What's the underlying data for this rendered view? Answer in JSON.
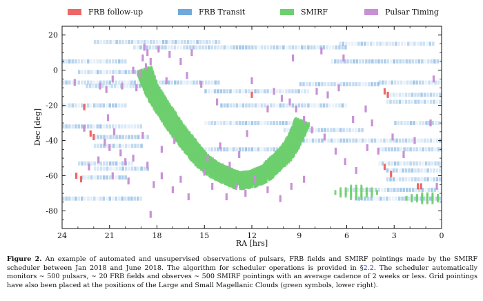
{
  "legend": [
    {
      "label": "FRB follow-up",
      "color": "#ee6666"
    },
    {
      "label": "FRB Transit",
      "color": "#6fa8dc"
    },
    {
      "label": "SMIRF",
      "color": "#6dcf6d"
    },
    {
      "label": "Pulsar Timing",
      "color": "#c891d6"
    }
  ],
  "caption": {
    "figure_label": "Figure 2.",
    "text_before_ref": "An example of automated and unsupervised observations of pulsars, FRB fields and SMIRF pointings made by the SMIRF scheduler between Jan 2018 and June 2018. The algorithm for scheduler operations is provided in §",
    "ref": "2.2",
    "text_after_ref": ". The scheduler automatically monitors ∼ 500 pulsars, ∼ 20 FRB fields and observes ∼ 500 SMIRF pointings with an average cadence of 2 weeks or less. Grid pointings have also been placed at the positions of the Large and Small Magellanic Clouds (green symbols, lower right)."
  },
  "chart_data": {
    "type": "scatter",
    "title": "",
    "xlabel": "RA [hrs]",
    "ylabel": "Dec [deg]",
    "xlim": [
      24,
      0
    ],
    "ylim": [
      -90,
      25
    ],
    "x_reversed": true,
    "xticks": [
      24,
      21,
      18,
      15,
      12,
      9,
      6,
      3,
      0
    ],
    "yticks": [
      20,
      0,
      -20,
      -40,
      -60,
      -80
    ],
    "grid": false,
    "legend_position": "top",
    "series": [
      {
        "name": "FRB Transit",
        "marker": "horizontal track (RA span at fixed Dec)",
        "tracks": [
          {
            "ra_start": 22.0,
            "ra_end": 14.0,
            "dec": 16
          },
          {
            "ra_start": 19.5,
            "ra_end": 6.0,
            "dec": 13
          },
          {
            "ra_start": 6.5,
            "ra_end": 0.5,
            "dec": 15
          },
          {
            "ra_start": 24.0,
            "ra_end": 20.0,
            "dec": 5
          },
          {
            "ra_start": 7.0,
            "ra_end": 0.0,
            "dec": 5
          },
          {
            "ra_start": 23.0,
            "ra_end": 19.0,
            "dec": -1
          },
          {
            "ra_start": 24.0,
            "ra_end": 14.0,
            "dec": -7
          },
          {
            "ra_start": 9.0,
            "ra_end": 4.0,
            "dec": -8
          },
          {
            "ra_start": 4.0,
            "ra_end": 0.0,
            "dec": -7
          },
          {
            "ra_start": 22.5,
            "ra_end": 19.0,
            "dec": -9
          },
          {
            "ra_start": 15.0,
            "ra_end": 8.5,
            "dec": -12
          },
          {
            "ra_start": 3.5,
            "ra_end": 0.0,
            "dec": -14
          },
          {
            "ra_start": 3.5,
            "ra_end": 0.0,
            "dec": -18
          },
          {
            "ra_start": 24.0,
            "ra_end": 20.0,
            "dec": -20
          },
          {
            "ra_start": 14.0,
            "ra_end": 6.0,
            "dec": -20
          },
          {
            "ra_start": 15.0,
            "ra_end": 9.0,
            "dec": -30
          },
          {
            "ra_start": 3.0,
            "ra_end": 0.0,
            "dec": -30
          },
          {
            "ra_start": 24.0,
            "ra_end": 19.0,
            "dec": -32
          },
          {
            "ra_start": 10.0,
            "ra_end": 5.0,
            "dec": -34
          },
          {
            "ra_start": 22.0,
            "ra_end": 18.5,
            "dec": -38
          },
          {
            "ra_start": 9.0,
            "ra_end": 0.0,
            "dec": -40
          },
          {
            "ra_start": 22.0,
            "ra_end": 19.0,
            "dec": -43
          },
          {
            "ra_start": 15.0,
            "ra_end": 10.0,
            "dec": -45
          },
          {
            "ra_start": 4.0,
            "ra_end": 0.0,
            "dec": -45
          },
          {
            "ra_start": 23.0,
            "ra_end": 19.5,
            "dec": -53
          },
          {
            "ra_start": 4.0,
            "ra_end": 0.0,
            "dec": -53
          },
          {
            "ra_start": 22.0,
            "ra_end": 18.5,
            "dec": -56
          },
          {
            "ra_start": 3.5,
            "ra_end": 0.0,
            "dec": -57
          },
          {
            "ra_start": 3.5,
            "ra_end": 0.0,
            "dec": -62
          },
          {
            "ra_start": 23.0,
            "ra_end": 20.0,
            "dec": -61
          },
          {
            "ra_start": 6.0,
            "ra_end": 0.0,
            "dec": -68
          },
          {
            "ra_start": 24.0,
            "ra_end": 19.0,
            "dec": -73
          },
          {
            "ra_start": 5.5,
            "ra_end": 0.0,
            "dec": -73
          }
        ]
      },
      {
        "name": "FRB follow-up",
        "points": [
          {
            "ra": 22.6,
            "dec": -21
          },
          {
            "ra": 22.2,
            "dec": -36
          },
          {
            "ra": 22.0,
            "dec": -38
          },
          {
            "ra": 23.1,
            "dec": -60
          },
          {
            "ra": 22.8,
            "dec": -62
          },
          {
            "ra": 3.6,
            "dec": -12
          },
          {
            "ra": 3.4,
            "dec": -14
          },
          {
            "ra": 3.6,
            "dec": -55
          },
          {
            "ra": 3.2,
            "dec": -59
          },
          {
            "ra": 1.3,
            "dec": -66
          },
          {
            "ra": 1.5,
            "dec": -66
          },
          {
            "ra": 12.0,
            "dec": -14
          }
        ]
      },
      {
        "name": "Pulsar Timing",
        "points": [
          {
            "ra": 18.8,
            "dec": 13
          },
          {
            "ra": 18.6,
            "dec": 10
          },
          {
            "ra": 18.9,
            "dec": 7
          },
          {
            "ra": 18.4,
            "dec": 5
          },
          {
            "ra": 18.7,
            "dec": 2
          },
          {
            "ra": 19.1,
            "dec": -2
          },
          {
            "ra": 17.9,
            "dec": 12
          },
          {
            "ra": 17.2,
            "dec": 9
          },
          {
            "ra": 16.5,
            "dec": 5
          },
          {
            "ra": 15.8,
            "dec": 10
          },
          {
            "ra": 19.5,
            "dec": 0
          },
          {
            "ra": 20.8,
            "dec": -5
          },
          {
            "ra": 21.6,
            "dec": -9
          },
          {
            "ra": 20.2,
            "dec": -9
          },
          {
            "ra": 19.3,
            "dec": -10
          },
          {
            "ra": 23.2,
            "dec": -7
          },
          {
            "ra": 21.1,
            "dec": -27
          },
          {
            "ra": 20.7,
            "dec": -35
          },
          {
            "ra": 21.3,
            "dec": -41
          },
          {
            "ra": 21.0,
            "dec": -44
          },
          {
            "ra": 20.3,
            "dec": -47
          },
          {
            "ra": 19.5,
            "dec": -50
          },
          {
            "ra": 20.0,
            "dec": -52
          },
          {
            "ra": 21.7,
            "dec": -51
          },
          {
            "ra": 22.3,
            "dec": -55
          },
          {
            "ra": 20.8,
            "dec": -60
          },
          {
            "ra": 19.8,
            "dec": -63
          },
          {
            "ra": 18.6,
            "dec": -54
          },
          {
            "ra": 18.2,
            "dec": -65
          },
          {
            "ra": 17.7,
            "dec": -60
          },
          {
            "ra": 17.0,
            "dec": -68
          },
          {
            "ra": 16.5,
            "dec": -62
          },
          {
            "ra": 16.0,
            "dec": -72
          },
          {
            "ra": 15.0,
            "dec": -58
          },
          {
            "ra": 14.5,
            "dec": -66
          },
          {
            "ra": 13.6,
            "dec": -72
          },
          {
            "ra": 13.0,
            "dec": -66
          },
          {
            "ra": 12.4,
            "dec": -70
          },
          {
            "ra": 11.8,
            "dec": -62
          },
          {
            "ra": 11.0,
            "dec": -68
          },
          {
            "ra": 10.2,
            "dec": -73
          },
          {
            "ra": 9.5,
            "dec": -66
          },
          {
            "ra": 8.7,
            "dec": -62
          },
          {
            "ra": 18.4,
            "dec": -82
          },
          {
            "ra": 14.8,
            "dec": -50
          },
          {
            "ra": 13.4,
            "dec": -54
          },
          {
            "ra": 12.8,
            "dec": -48
          },
          {
            "ra": 15.2,
            "dec": -8
          },
          {
            "ra": 14.2,
            "dec": -18
          },
          {
            "ra": 12.0,
            "dec": -6
          },
          {
            "ra": 10.6,
            "dec": -12
          },
          {
            "ra": 9.6,
            "dec": -18
          },
          {
            "ra": 9.2,
            "dec": -22
          },
          {
            "ra": 8.7,
            "dec": -28
          },
          {
            "ra": 8.2,
            "dec": -34
          },
          {
            "ra": 7.4,
            "dec": -38
          },
          {
            "ra": 6.7,
            "dec": -46
          },
          {
            "ra": 6.1,
            "dec": -52
          },
          {
            "ra": 5.4,
            "dec": -57
          },
          {
            "ra": 4.7,
            "dec": -44
          },
          {
            "ra": 4.0,
            "dec": -46
          },
          {
            "ra": 3.1,
            "dec": -38
          },
          {
            "ra": 2.4,
            "dec": -48
          },
          {
            "ra": 1.7,
            "dec": -40
          },
          {
            "ra": 0.7,
            "dec": -30
          },
          {
            "ra": 0.5,
            "dec": -5
          },
          {
            "ra": 0.3,
            "dec": -66
          },
          {
            "ra": 4.8,
            "dec": -22
          },
          {
            "ra": 7.2,
            "dec": -14
          },
          {
            "ra": 9.4,
            "dec": 7
          },
          {
            "ra": 7.6,
            "dec": 11
          },
          {
            "ra": 6.2,
            "dec": 7
          },
          {
            "ra": 4.4,
            "dec": -30
          },
          {
            "ra": 5.6,
            "dec": -28
          },
          {
            "ra": 6.5,
            "dec": -10
          },
          {
            "ra": 7.9,
            "dec": -12
          },
          {
            "ra": 10.1,
            "dec": -16
          },
          {
            "ra": 11.0,
            "dec": -22
          },
          {
            "ra": 16.1,
            "dec": -3
          },
          {
            "ra": 17.4,
            "dec": -6
          },
          {
            "ra": 21.2,
            "dec": -11
          },
          {
            "ra": 22.6,
            "dec": -33
          },
          {
            "ra": 12.3,
            "dec": -36
          },
          {
            "ra": 14.0,
            "dec": -43
          },
          {
            "ra": 16.9,
            "dec": -40
          },
          {
            "ra": 17.7,
            "dec": -45
          },
          {
            "ra": 18.9,
            "dec": -37
          }
        ]
      },
      {
        "name": "SMIRF",
        "galactic_plane": [
          [
            18.8,
            0
          ],
          [
            18.4,
            -10
          ],
          [
            17.9,
            -18
          ],
          [
            17.3,
            -26
          ],
          [
            16.7,
            -34
          ],
          [
            16.0,
            -42
          ],
          [
            15.3,
            -50
          ],
          [
            14.5,
            -56
          ],
          [
            13.6,
            -60
          ],
          [
            12.8,
            -63
          ],
          [
            12.0,
            -62
          ],
          [
            11.2,
            -59
          ],
          [
            10.5,
            -53
          ],
          [
            9.8,
            -47
          ],
          [
            9.2,
            -38
          ],
          [
            8.8,
            -29
          ]
        ],
        "magellanic_clouds": [
          {
            "ra": 5.4,
            "dec": -69.5,
            "ra_halfwidth": 0.6,
            "dec_halfwidth": 3
          },
          {
            "ra": 0.9,
            "dec": -72.8,
            "ra_halfwidth": 0.6,
            "dec_halfwidth": 2
          }
        ]
      }
    ]
  }
}
